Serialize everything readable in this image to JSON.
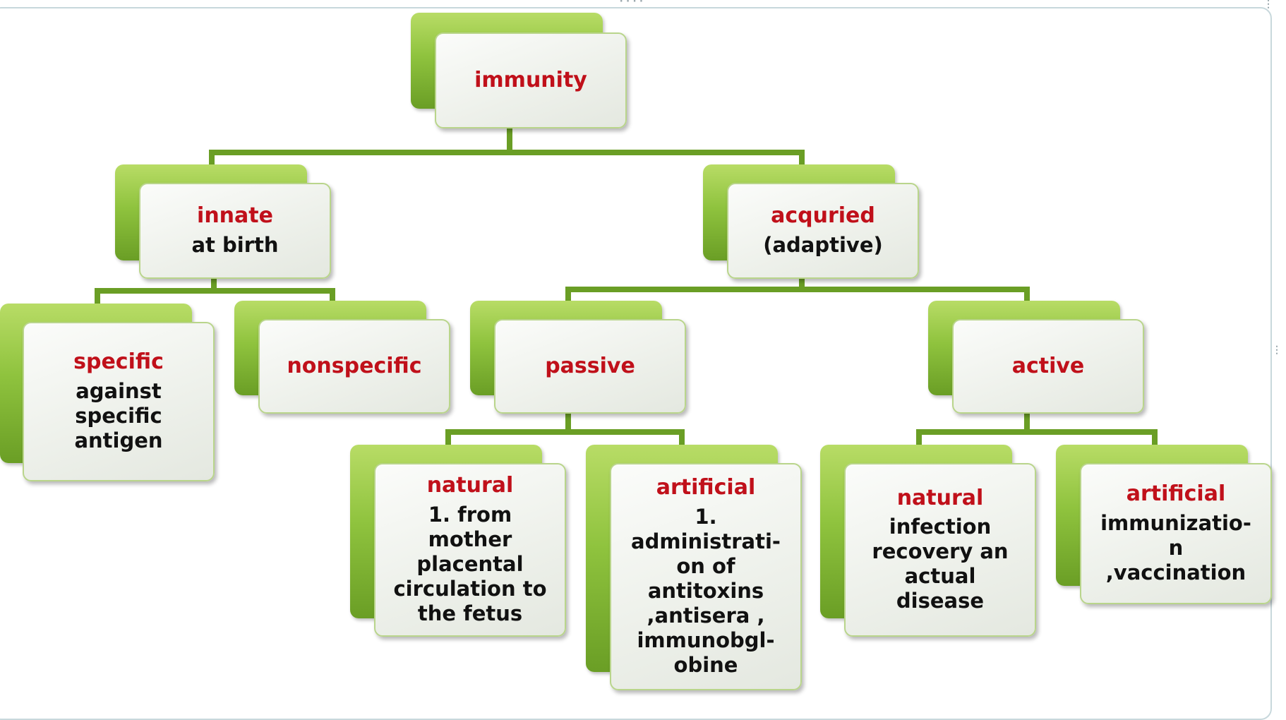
{
  "colors": {
    "title": "#c0101a",
    "text": "#111111",
    "connector": "#6a9e25",
    "box_back": "#8fc33e",
    "box_front": "#eef1eb"
  },
  "nodes": {
    "immunity": {
      "title": "immunity"
    },
    "innate": {
      "title": "innate",
      "desc": "at birth"
    },
    "acquired": {
      "title": "acquried",
      "desc": "(adaptive)"
    },
    "specific": {
      "title": "specific",
      "desc_lines": [
        "against",
        "specific",
        "antigen"
      ]
    },
    "nonspecific": {
      "title": "nonspecific"
    },
    "passive": {
      "title": "passive"
    },
    "active": {
      "title": "active"
    },
    "passive_natural": {
      "title": "natural",
      "desc_lines": [
        "1. from",
        "mother",
        "placental",
        "circulation to",
        "the fetus"
      ]
    },
    "passive_artificial": {
      "title": "artificial",
      "desc_lines": [
        "1.",
        "administrati-",
        "on of",
        "antitoxins",
        ",antisera ,",
        "immunobgl-",
        "obine"
      ]
    },
    "active_natural": {
      "title": "natural",
      "desc_lines": [
        "infection",
        "recovery an",
        "actual",
        "disease"
      ]
    },
    "active_artificial": {
      "title": "artificial",
      "desc_lines": [
        "immunizatio-",
        "n",
        ",vaccination"
      ]
    }
  }
}
